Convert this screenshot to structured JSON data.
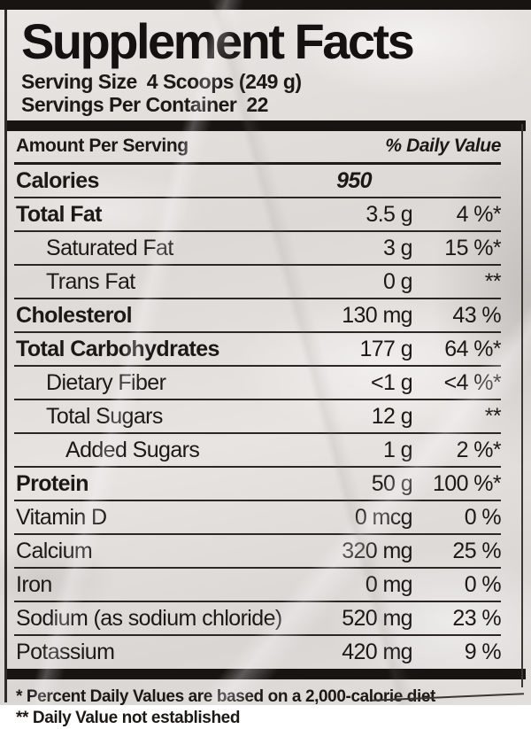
{
  "label": {
    "title": "Supplement Facts",
    "serving_size": {
      "label": "Serving Size",
      "value": "4 Scoops (249 g)"
    },
    "servings_per_container": {
      "label": "Servings Per Container",
      "value": "22"
    },
    "header": {
      "amount_per_serving": "Amount Per Serving",
      "daily_value": "% Daily Value"
    },
    "rows": [
      {
        "name": "Calories",
        "amount": "950",
        "dv": "",
        "bold": true,
        "indent": 0,
        "calories": true
      },
      {
        "name": "Total Fat",
        "amount": "3.5 g",
        "dv": "4 %*",
        "bold": true,
        "indent": 0
      },
      {
        "name": "Saturated Fat",
        "amount": "3 g",
        "dv": "15 %*",
        "bold": false,
        "indent": 1
      },
      {
        "name": "Trans Fat",
        "amount": "0 g",
        "dv": "**",
        "bold": false,
        "indent": 1
      },
      {
        "name": "Cholesterol",
        "amount": "130 mg",
        "dv": "43 %",
        "bold": true,
        "indent": 0
      },
      {
        "name": "Total Carbohydrates",
        "amount": "177 g",
        "dv": "64 %*",
        "bold": true,
        "indent": 0
      },
      {
        "name": "Dietary Fiber",
        "amount": "<1 g",
        "dv": "<4 %*",
        "bold": false,
        "indent": 1
      },
      {
        "name": "Total Sugars",
        "amount": "12 g",
        "dv": "**",
        "bold": false,
        "indent": 1
      },
      {
        "name": "Added Sugars",
        "amount": "1 g",
        "dv": "2 %*",
        "bold": false,
        "indent": 2
      },
      {
        "name": "Protein",
        "amount": "50 g",
        "dv": "100 %*",
        "bold": true,
        "indent": 0
      },
      {
        "name": "Vitamin D",
        "amount": "0 mcg",
        "dv": "0 %",
        "bold": false,
        "indent": 0
      },
      {
        "name": "Calcium",
        "amount": "320 mg",
        "dv": "25 %",
        "bold": false,
        "indent": 0
      },
      {
        "name": "Iron",
        "amount": "0 mg",
        "dv": "0 %",
        "bold": false,
        "indent": 0
      },
      {
        "name": "Sodium (as sodium chloride)",
        "amount": "520 mg",
        "dv": "23 %",
        "bold": false,
        "indent": 0
      },
      {
        "name": "Potassium",
        "amount": "420 mg",
        "dv": "9 %",
        "bold": false,
        "indent": 0
      }
    ],
    "footnotes": [
      "* Percent Daily Values are based on a 2,000-calorie diet",
      "** Daily Value not established"
    ]
  }
}
